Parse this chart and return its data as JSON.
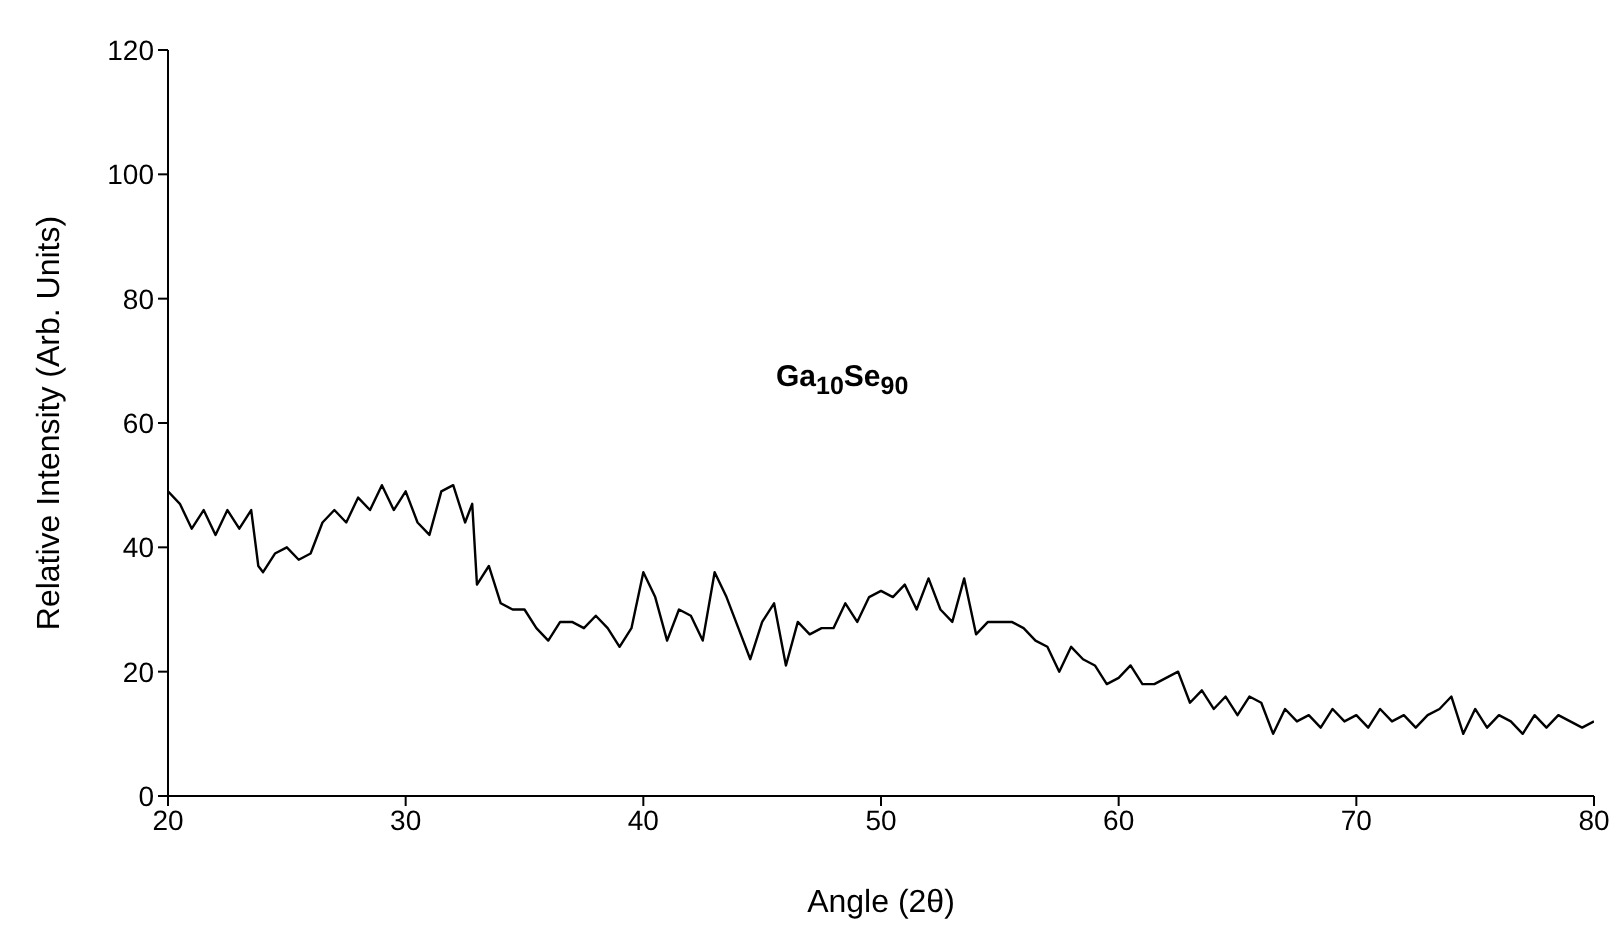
{
  "chart_data": {
    "type": "line",
    "xlabel": "Angle (2θ)",
    "ylabel": "Relative Intensity (Arb. Units)",
    "annotations": [
      "Ga$_{10}$Se$_{90}$"
    ],
    "xlim": [
      20,
      80
    ],
    "xticks": [
      20,
      30,
      40,
      50,
      60,
      70,
      80
    ],
    "ylim": [
      0,
      120
    ],
    "yticks": [
      0,
      20,
      40,
      60,
      80,
      100,
      120
    ],
    "marker": "none",
    "line_style": "solid",
    "series": [
      {
        "color": "#000000",
        "x": [
          20,
          20.5,
          21,
          21.5,
          22,
          22.5,
          23,
          23.5,
          23.8,
          24,
          24.5,
          25,
          25.5,
          26,
          26.5,
          27,
          27.5,
          28,
          28.5,
          29,
          29.5,
          30,
          30.5,
          31,
          31.5,
          32,
          32.5,
          32.8,
          33,
          33.5,
          34,
          34.5,
          35,
          35.5,
          36,
          36.5,
          37,
          37.5,
          38,
          38.5,
          39,
          39.5,
          40,
          40.5,
          41,
          41.5,
          42,
          42.5,
          43,
          43.5,
          44,
          44.5,
          45,
          45.5,
          46,
          46.5,
          47,
          47.5,
          48,
          48.5,
          49,
          49.5,
          50,
          50.5,
          51,
          51.5,
          52,
          52.5,
          53,
          53.5,
          54,
          54.5,
          55,
          55.5,
          56,
          56.5,
          57,
          57.5,
          58,
          58.5,
          59,
          59.5,
          60,
          60.5,
          61,
          61.5,
          62,
          62.5,
          63,
          63.5,
          64,
          64.5,
          65,
          65.5,
          66,
          66.5,
          67,
          67.5,
          68,
          68.5,
          69,
          69.5,
          70,
          70.5,
          71,
          71.5,
          72,
          72.5,
          73,
          73.5,
          74,
          74.5,
          75,
          75.5,
          76,
          76.5,
          77,
          77.5,
          78,
          78.5,
          79,
          79.5,
          80
        ],
        "values": [
          49,
          47,
          43,
          46,
          42,
          46,
          43,
          46,
          37,
          36,
          39,
          40,
          38,
          39,
          44,
          46,
          44,
          48,
          46,
          50,
          46,
          49,
          44,
          42,
          49,
          50,
          44,
          47,
          34,
          37,
          31,
          30,
          30,
          27,
          25,
          28,
          28,
          27,
          29,
          27,
          24,
          27,
          36,
          32,
          25,
          30,
          29,
          25,
          36,
          32,
          27,
          22,
          28,
          31,
          21,
          28,
          26,
          27,
          27,
          31,
          28,
          32,
          33,
          32,
          34,
          30,
          35,
          30,
          28,
          35,
          26,
          28,
          28,
          28,
          27,
          25,
          24,
          20,
          24,
          22,
          21,
          18,
          19,
          21,
          18,
          18,
          19,
          20,
          15,
          17,
          14,
          16,
          13,
          16,
          15,
          10,
          14,
          12,
          13,
          11,
          14,
          12,
          13,
          11,
          14,
          12,
          13,
          11,
          13,
          14,
          16,
          10,
          14,
          11,
          13,
          12,
          10,
          13,
          11,
          13,
          12,
          11,
          12
        ]
      }
    ]
  }
}
